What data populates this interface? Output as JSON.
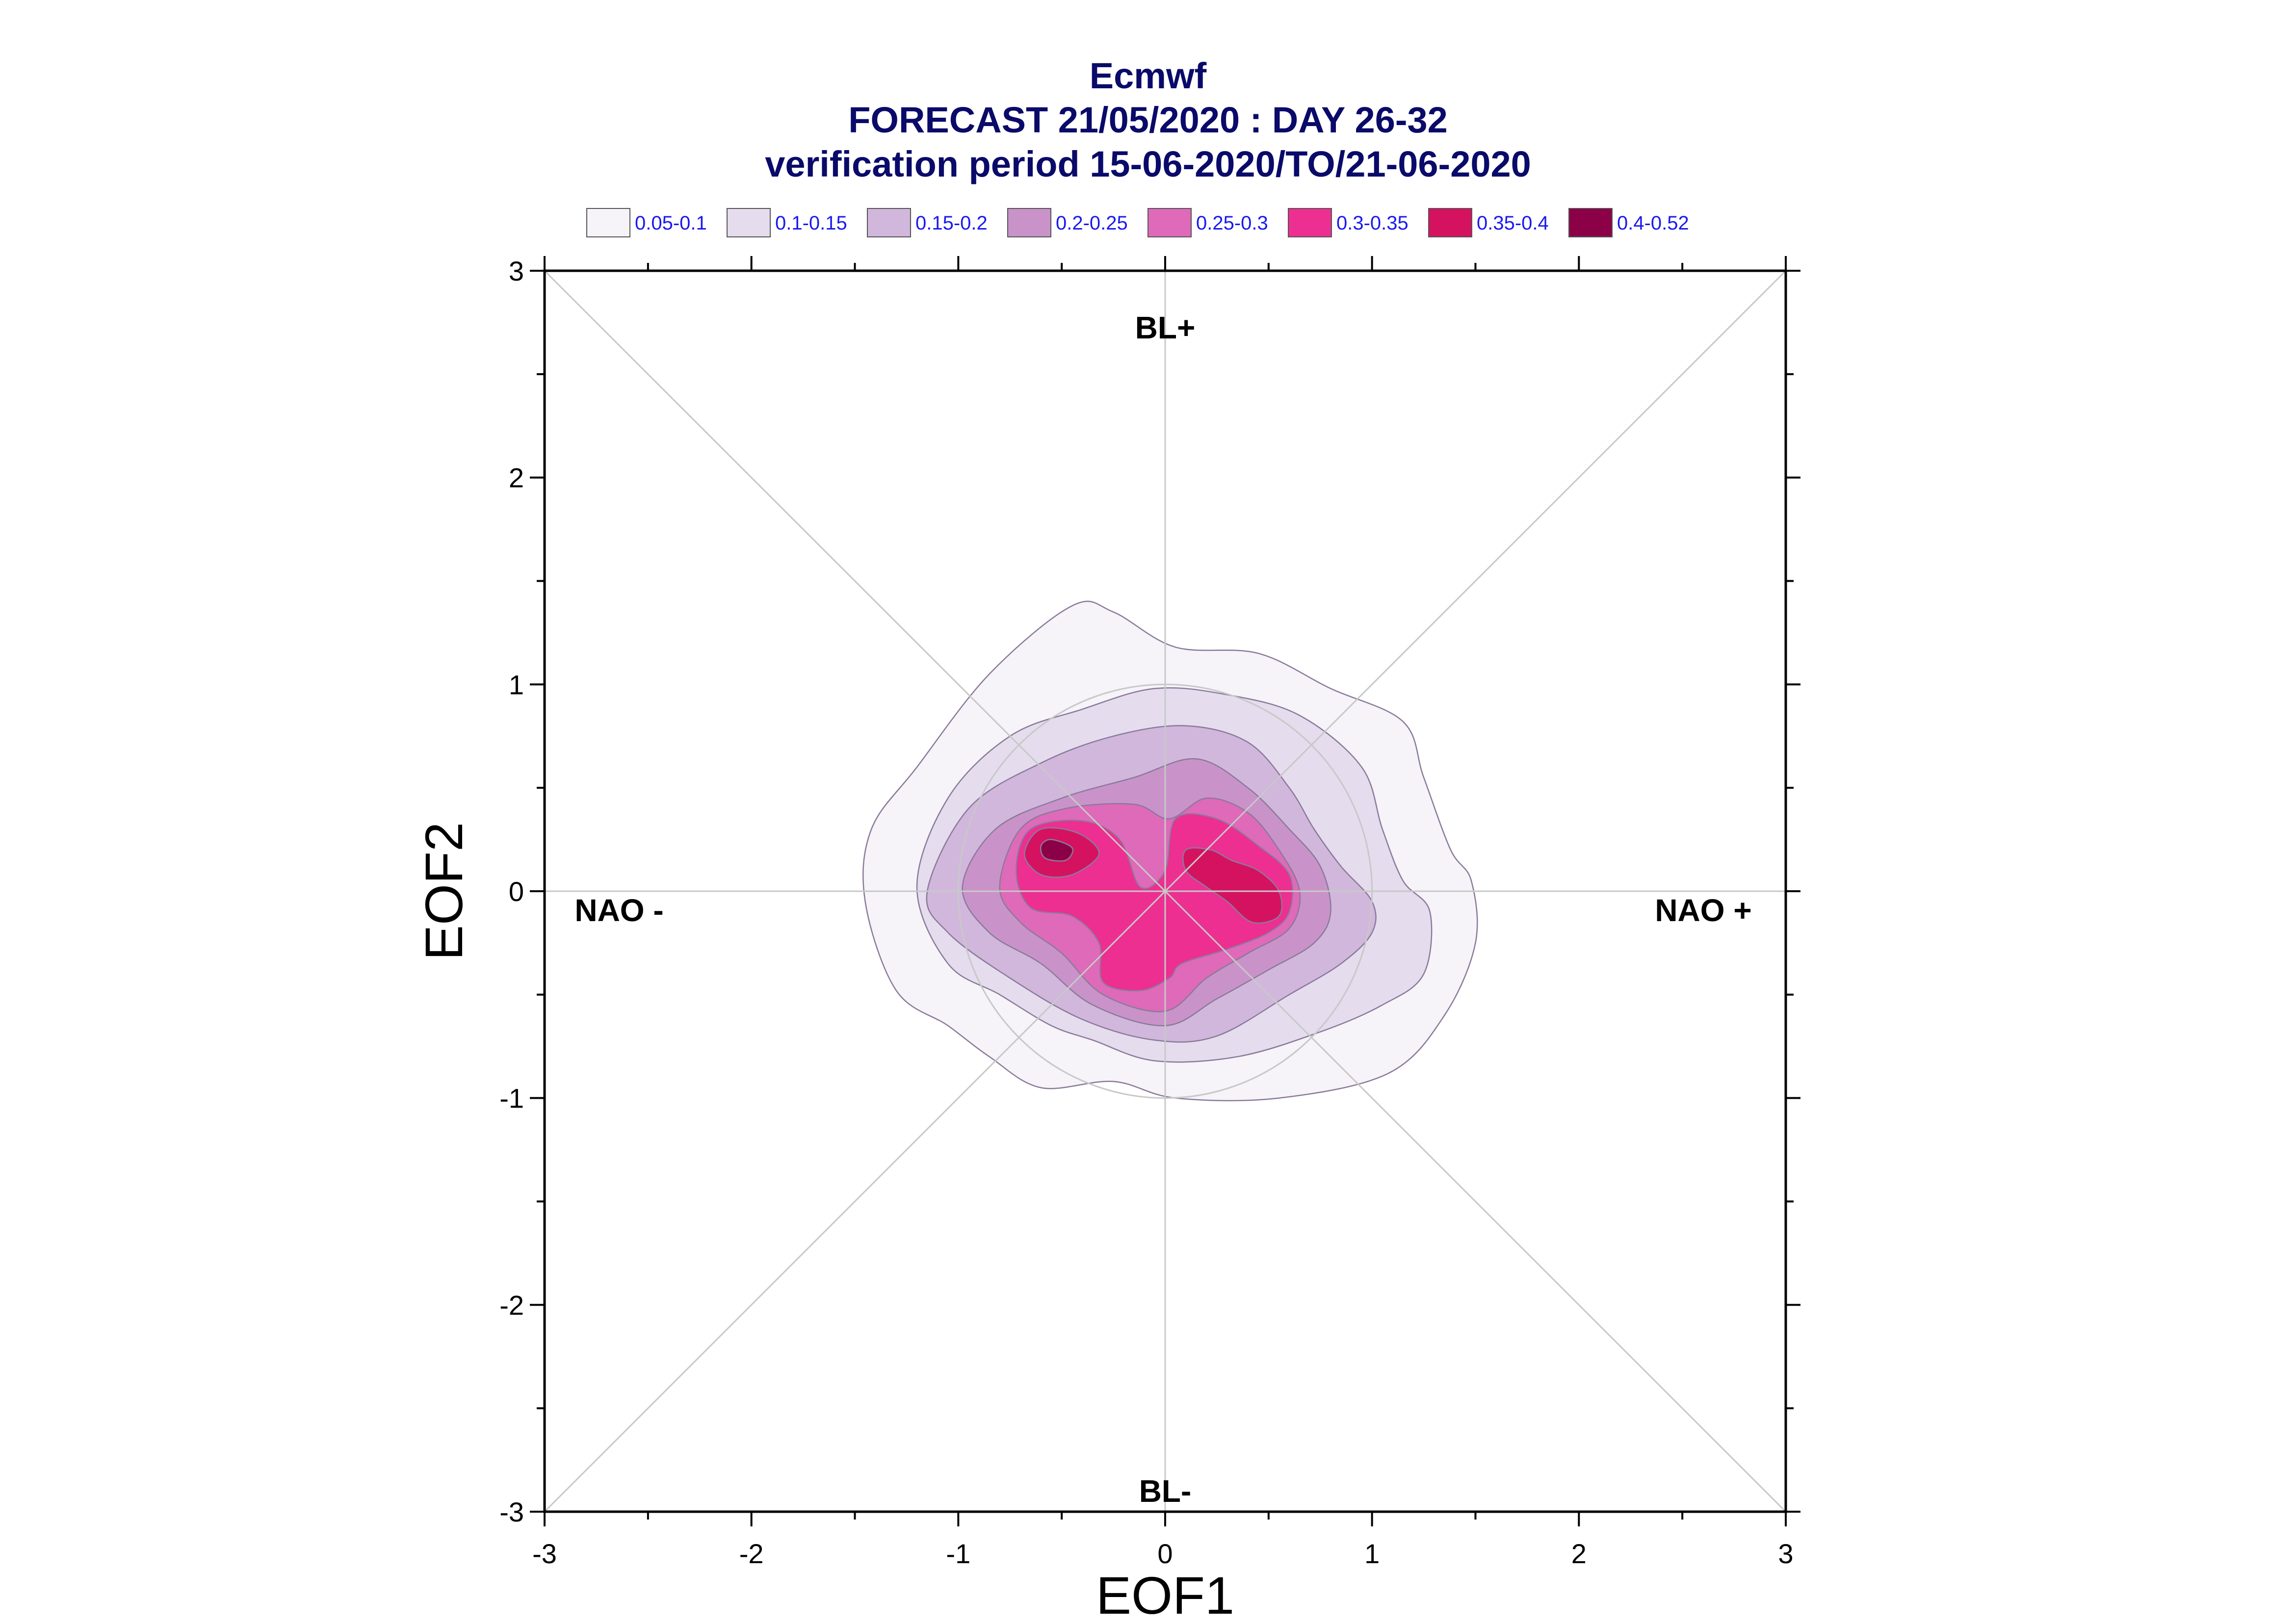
{
  "chart_data": {
    "type": "contour",
    "title_lines": [
      "Ecmwf",
      "FORECAST 21/05/2020 : DAY 26-32",
      "verification period 15-06-2020/TO/21-06-2020"
    ],
    "xlabel": "EOF1",
    "ylabel": "EOF2",
    "xlim": [
      -3,
      3
    ],
    "ylim": [
      -3,
      3
    ],
    "xticks": [
      "-3",
      "-2",
      "-1",
      "0",
      "1",
      "2",
      "3"
    ],
    "yticks": [
      "3",
      "2",
      "1",
      "0",
      "-1",
      "-2",
      "-3"
    ],
    "region_labels": {
      "top": "BL+",
      "bottom": "BL-",
      "left": "NAO -",
      "right": "NAO +"
    },
    "reference_circle_radius": 1,
    "diagonals": true,
    "legend": [
      {
        "label": "0.05-0.1",
        "color": "#f6f3f9"
      },
      {
        "label": "0.1-0.15",
        "color": "#e5dced"
      },
      {
        "label": "0.15-0.2",
        "color": "#d1b7dc"
      },
      {
        "label": "0.2-0.25",
        "color": "#c993c9"
      },
      {
        "label": "0.25-0.3",
        "color": "#de6ab9"
      },
      {
        "label": "0.3-0.35",
        "color": "#ec2f91"
      },
      {
        "label": "0.35-0.4",
        "color": "#d51260"
      },
      {
        "label": "0.4-0.52",
        "color": "#8c0048"
      }
    ],
    "contours": [
      {
        "level": "0.05-0.1",
        "points": [
          [
            -1.45,
            -0.05
          ],
          [
            -1.42,
            0.3
          ],
          [
            -1.2,
            0.6
          ],
          [
            -0.85,
            1.05
          ],
          [
            -0.45,
            1.38
          ],
          [
            -0.25,
            1.35
          ],
          [
            0.05,
            1.18
          ],
          [
            0.45,
            1.15
          ],
          [
            0.8,
            0.98
          ],
          [
            1.15,
            0.82
          ],
          [
            1.25,
            0.55
          ],
          [
            1.38,
            0.2
          ],
          [
            1.48,
            0.05
          ],
          [
            1.5,
            -0.25
          ],
          [
            1.35,
            -0.6
          ],
          [
            1.08,
            -0.88
          ],
          [
            0.55,
            -1.0
          ],
          [
            0.05,
            -1.0
          ],
          [
            -0.25,
            -0.92
          ],
          [
            -0.6,
            -0.95
          ],
          [
            -0.85,
            -0.8
          ],
          [
            -1.05,
            -0.65
          ],
          [
            -1.3,
            -0.48
          ]
        ]
      },
      {
        "level": "0.1-0.15",
        "points": [
          [
            -1.2,
            0.02
          ],
          [
            -1.05,
            0.45
          ],
          [
            -0.75,
            0.75
          ],
          [
            -0.4,
            0.88
          ],
          [
            -0.05,
            0.98
          ],
          [
            0.3,
            0.95
          ],
          [
            0.65,
            0.85
          ],
          [
            0.95,
            0.6
          ],
          [
            1.05,
            0.3
          ],
          [
            1.15,
            0.05
          ],
          [
            1.28,
            -0.1
          ],
          [
            1.25,
            -0.4
          ],
          [
            1.05,
            -0.55
          ],
          [
            0.75,
            -0.68
          ],
          [
            0.35,
            -0.8
          ],
          [
            -0.05,
            -0.82
          ],
          [
            -0.35,
            -0.72
          ],
          [
            -0.55,
            -0.65
          ],
          [
            -0.8,
            -0.5
          ],
          [
            -1.05,
            -0.35
          ]
        ]
      },
      {
        "level": "0.15-0.2",
        "points": [
          [
            -1.15,
            0.0
          ],
          [
            -0.95,
            0.4
          ],
          [
            -0.6,
            0.62
          ],
          [
            -0.25,
            0.75
          ],
          [
            0.1,
            0.8
          ],
          [
            0.4,
            0.72
          ],
          [
            0.6,
            0.5
          ],
          [
            0.72,
            0.3
          ],
          [
            0.85,
            0.12
          ],
          [
            1.0,
            -0.05
          ],
          [
            1.0,
            -0.2
          ],
          [
            0.85,
            -0.35
          ],
          [
            0.6,
            -0.5
          ],
          [
            0.25,
            -0.7
          ],
          [
            -0.05,
            -0.72
          ],
          [
            -0.4,
            -0.62
          ],
          [
            -0.75,
            -0.42
          ],
          [
            -1.05,
            -0.2
          ]
        ]
      },
      {
        "level": "0.2-0.25",
        "points": [
          [
            -0.98,
            0.02
          ],
          [
            -0.82,
            0.3
          ],
          [
            -0.5,
            0.45
          ],
          [
            -0.15,
            0.55
          ],
          [
            0.15,
            0.64
          ],
          [
            0.4,
            0.5
          ],
          [
            0.6,
            0.3
          ],
          [
            0.75,
            0.12
          ],
          [
            0.8,
            -0.1
          ],
          [
            0.72,
            -0.25
          ],
          [
            0.5,
            -0.38
          ],
          [
            0.25,
            -0.52
          ],
          [
            0.0,
            -0.65
          ],
          [
            -0.35,
            -0.55
          ],
          [
            -0.6,
            -0.35
          ],
          [
            -0.85,
            -0.2
          ]
        ]
      },
      {
        "level": "0.25-0.3",
        "points": [
          [
            -0.8,
            0.02
          ],
          [
            -0.7,
            0.3
          ],
          [
            -0.48,
            0.4
          ],
          [
            -0.15,
            0.42
          ],
          [
            0.02,
            0.35
          ],
          [
            0.2,
            0.45
          ],
          [
            0.4,
            0.38
          ],
          [
            0.55,
            0.2
          ],
          [
            0.65,
            0.0
          ],
          [
            0.6,
            -0.18
          ],
          [
            0.4,
            -0.3
          ],
          [
            0.2,
            -0.42
          ],
          [
            0.0,
            -0.58
          ],
          [
            -0.3,
            -0.5
          ],
          [
            -0.5,
            -0.3
          ],
          [
            -0.7,
            -0.15
          ]
        ]
      },
      {
        "level": "0.3-0.35",
        "points": [
          [
            -0.72,
            0.1
          ],
          [
            -0.65,
            0.3
          ],
          [
            -0.4,
            0.34
          ],
          [
            -0.22,
            0.25
          ],
          [
            -0.12,
            0.02
          ],
          [
            0.0,
            0.1
          ],
          [
            0.05,
            0.35
          ],
          [
            0.25,
            0.35
          ],
          [
            0.45,
            0.22
          ],
          [
            0.6,
            0.08
          ],
          [
            0.6,
            -0.1
          ],
          [
            0.5,
            -0.2
          ],
          [
            0.3,
            -0.28
          ],
          [
            0.08,
            -0.35
          ],
          [
            0.02,
            -0.42
          ],
          [
            -0.12,
            -0.48
          ],
          [
            -0.3,
            -0.44
          ],
          [
            -0.32,
            -0.25
          ],
          [
            -0.45,
            -0.12
          ],
          [
            -0.65,
            -0.08
          ]
        ]
      },
      {
        "level": "0.35-0.4",
        "points": [
          [
            -0.68,
            0.18
          ],
          [
            -0.6,
            0.3
          ],
          [
            -0.42,
            0.28
          ],
          [
            -0.32,
            0.18
          ],
          [
            -0.45,
            0.08
          ],
          [
            -0.6,
            0.08
          ]
        ]
      },
      {
        "level": "0.35-0.4",
        "points": [
          [
            0.1,
            0.2
          ],
          [
            0.22,
            0.2
          ],
          [
            0.32,
            0.15
          ],
          [
            0.45,
            0.1
          ],
          [
            0.55,
            0.0
          ],
          [
            0.55,
            -0.12
          ],
          [
            0.42,
            -0.15
          ],
          [
            0.3,
            -0.05
          ],
          [
            0.2,
            0.02
          ],
          [
            0.1,
            0.1
          ]
        ]
      },
      {
        "level": "0.4-0.52",
        "points": [
          [
            -0.6,
            0.22
          ],
          [
            -0.55,
            0.25
          ],
          [
            -0.45,
            0.21
          ],
          [
            -0.48,
            0.15
          ],
          [
            -0.58,
            0.16
          ]
        ]
      }
    ]
  }
}
